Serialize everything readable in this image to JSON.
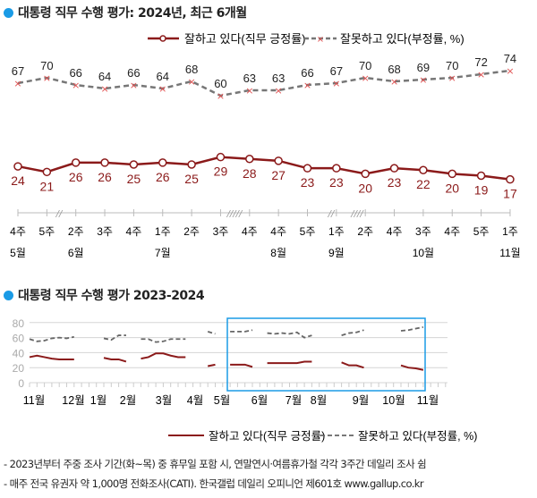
{
  "chart_data": [
    {
      "type": "line",
      "title": "대통령 직무 수행 평가: 2024년, 최근 6개월",
      "weeks": [
        "4주",
        "5주",
        "2주",
        "3주",
        "4주",
        "1주",
        "2주",
        "3주",
        "4주",
        "4주",
        "5주",
        "1주",
        "2주",
        "4주",
        "3주",
        "4주",
        "5주",
        "1주"
      ],
      "months": [
        "5월",
        "",
        "6월",
        "",
        "",
        "7월",
        "",
        "",
        "",
        "8월",
        "",
        "9월",
        "",
        "",
        "10월",
        "",
        "",
        "11월"
      ],
      "series": [
        {
          "name": "잘하고 있다(직무 긍정률)",
          "values": [
            24,
            21,
            26,
            26,
            25,
            26,
            25,
            29,
            28,
            27,
            23,
            23,
            20,
            23,
            22,
            20,
            19,
            17
          ],
          "color": "#8b1a1a",
          "style": "solid-circle"
        },
        {
          "name": "잘못하고 있다(부정률, %)",
          "values": [
            67,
            70,
            66,
            64,
            66,
            64,
            68,
            60,
            63,
            63,
            66,
            67,
            70,
            68,
            69,
            70,
            72,
            74
          ],
          "color": "#777777",
          "style": "dashed-x",
          "marker_color": "#e05050"
        }
      ],
      "legend": "top-right"
    },
    {
      "type": "line",
      "title": "대통령 직무 수행 평가 2023-2024",
      "ylim": [
        0,
        80
      ],
      "yticks": [
        "0",
        "20",
        "40",
        "60",
        "80"
      ],
      "xticks": [
        "11월",
        "12월",
        "1월",
        "2월",
        "3월",
        "4월",
        "5월",
        "6월",
        "7월",
        "8월",
        "9월",
        "10월",
        "11월"
      ],
      "grid": true,
      "highlight": "5월-11월",
      "highlight_color": "#1a9be6",
      "segments": [
        {
          "positive": [
            34,
            36,
            34,
            32,
            31,
            31,
            31
          ],
          "negative": [
            58,
            55,
            56,
            59,
            60,
            59,
            61
          ]
        },
        {
          "positive": [
            33,
            31,
            31,
            28
          ],
          "negative": [
            59,
            57,
            63,
            63
          ]
        },
        {
          "positive": [
            32,
            34,
            39,
            39,
            36,
            34,
            34
          ],
          "negative": [
            58,
            58,
            54,
            55,
            58,
            58,
            58
          ]
        },
        {
          "positive": [
            22,
            24
          ],
          "negative": [
            68,
            65
          ]
        },
        {
          "positive": [
            24,
            24,
            24,
            21
          ],
          "negative": [
            68,
            68,
            68,
            70
          ]
        },
        {
          "positive": [
            26,
            26,
            26,
            26,
            26,
            28,
            28
          ],
          "negative": [
            66,
            65,
            66,
            65,
            67,
            60,
            63
          ]
        },
        {
          "positive": [
            27,
            23,
            23,
            20
          ],
          "negative": [
            63,
            66,
            67,
            70
          ]
        },
        {
          "positive": [
            23,
            20,
            19,
            17
          ],
          "negative": [
            69,
            70,
            72,
            74
          ]
        }
      ],
      "series_names": [
        "잘하고 있다(직무 긍정률)",
        "잘못하고 있다(부정률, %)"
      ],
      "legend": "bottom-right"
    }
  ],
  "notes": [
    "- 2023년부터 주중 조사 기간(화~목) 중 휴무일 포함 시, 연말연시·여름휴가철 각각 3주간 데일리 조사 쉼",
    "- 매주 전국 유권자 약 1,000명 전화조사(CATI). 한국갤럽 데일리 오피니언 제601호 www.gallup.co.kr"
  ]
}
